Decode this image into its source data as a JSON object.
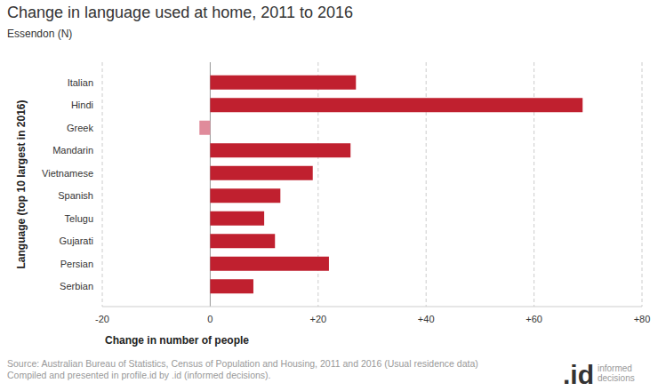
{
  "chart_data": {
    "type": "bar",
    "orientation": "horizontal",
    "title": "Change in language used at home, 2011 to 2016",
    "subtitle": "Essendon (N)",
    "x_label": "Change in number of people",
    "y_label": "Language (top 10 largest in 2016)",
    "categories": [
      "Italian",
      "Hindi",
      "Greek",
      "Mandarin",
      "Vietnamese",
      "Spanish",
      "Telugu",
      "Gujarati",
      "Persian",
      "Serbian"
    ],
    "values": [
      27,
      69,
      -2,
      26,
      19,
      13,
      10,
      12,
      22,
      8
    ],
    "colors": [
      "#c0202f",
      "#c0202f",
      "#e08b9b",
      "#c0202f",
      "#c0202f",
      "#c0202f",
      "#c0202f",
      "#c0202f",
      "#c0202f",
      "#c0202f"
    ],
    "xlim": [
      -20,
      80
    ],
    "xticks": [
      -20,
      0,
      {
        "value": 20,
        "label": "+20"
      },
      {
        "value": 40,
        "label": "+40"
      },
      {
        "value": 60,
        "label": "+60"
      },
      {
        "value": 80,
        "label": "+80"
      }
    ],
    "grid": true,
    "annotations": [
      "Source: Australian Bureau of Statistics, Census of Population and Housing, 2011 and 2016 (Usual residence data)",
      "Compiled and presented in profile.id by .id (informed decisions).",
      ".id",
      "informed decisions"
    ]
  }
}
